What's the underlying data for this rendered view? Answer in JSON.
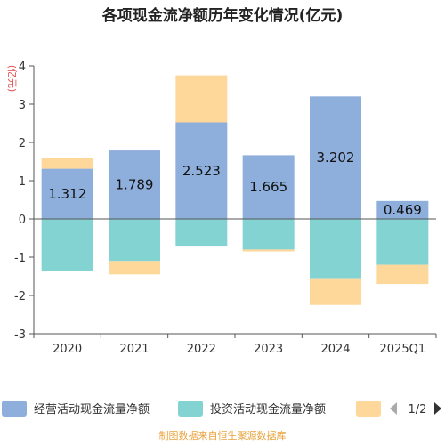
{
  "chart_data": {
    "type": "bar",
    "stacked": true,
    "title": "各项现金流净额历年变化情况(亿元)",
    "ylabel": "(亿元)",
    "categories": [
      "2020",
      "2021",
      "2022",
      "2023",
      "2024",
      "2025Q1"
    ],
    "ylim": [
      -3,
      4
    ],
    "yticks": [
      4,
      3,
      2,
      1,
      0,
      -1,
      -2,
      -3
    ],
    "grid": false,
    "legend_position": "bottom",
    "series": [
      {
        "name": "经营活动现金流量净额",
        "color": "#8eaedb",
        "values": [
          1.312,
          1.789,
          2.523,
          1.665,
          3.202,
          0.469
        ],
        "labels": [
          "1.312",
          "1.789",
          "2.523",
          "1.665",
          "3.202",
          "0.469"
        ]
      },
      {
        "name": "投资活动现金流量净额",
        "color": "#84d3d3",
        "values": [
          -1.35,
          -1.1,
          -0.7,
          -0.8,
          -1.55,
          -1.2
        ]
      },
      {
        "name": "",
        "color": "#fdd89a",
        "values": [
          0.28,
          -0.35,
          1.23,
          -0.05,
          -0.7,
          -0.5
        ]
      }
    ],
    "legend_pager": "1/2",
    "source": "制图数据来自恒生聚源数据库"
  }
}
